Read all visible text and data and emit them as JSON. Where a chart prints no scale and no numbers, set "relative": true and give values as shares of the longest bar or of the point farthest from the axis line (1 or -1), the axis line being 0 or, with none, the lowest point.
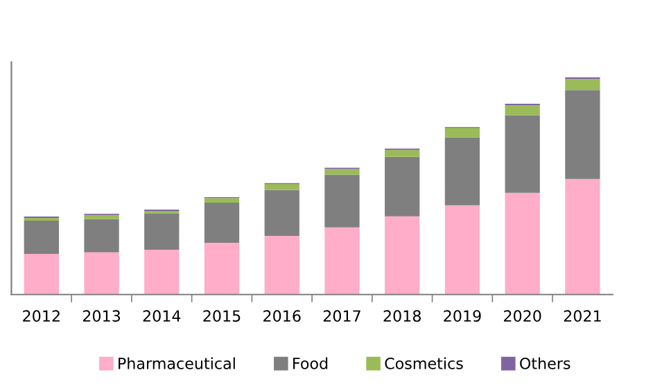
{
  "chart_data": {
    "type": "bar",
    "stacked": true,
    "relative": true,
    "legend": "bottom",
    "grid": false,
    "categories": [
      "2012",
      "2013",
      "2014",
      "2015",
      "2016",
      "2017",
      "2018",
      "2019",
      "2020",
      "2021"
    ],
    "series": [
      {
        "name": "Pharmaceutical",
        "color": "#ffadc9",
        "values": [
          0.187,
          0.194,
          0.206,
          0.238,
          0.27,
          0.309,
          0.36,
          0.411,
          0.468,
          0.532
        ]
      },
      {
        "name": "Food",
        "color": "#7f7f7f",
        "values": [
          0.153,
          0.153,
          0.166,
          0.185,
          0.211,
          0.243,
          0.274,
          0.313,
          0.357,
          0.409
        ]
      },
      {
        "name": "Cosmetics",
        "color": "#9bbb59",
        "values": [
          0.013,
          0.019,
          0.013,
          0.021,
          0.028,
          0.026,
          0.032,
          0.043,
          0.047,
          0.051
        ]
      },
      {
        "name": "Others",
        "color": "#8064a2",
        "values": [
          0.006,
          0.006,
          0.006,
          0.004,
          0.004,
          0.006,
          0.006,
          0.004,
          0.006,
          0.008
        ]
      }
    ]
  }
}
